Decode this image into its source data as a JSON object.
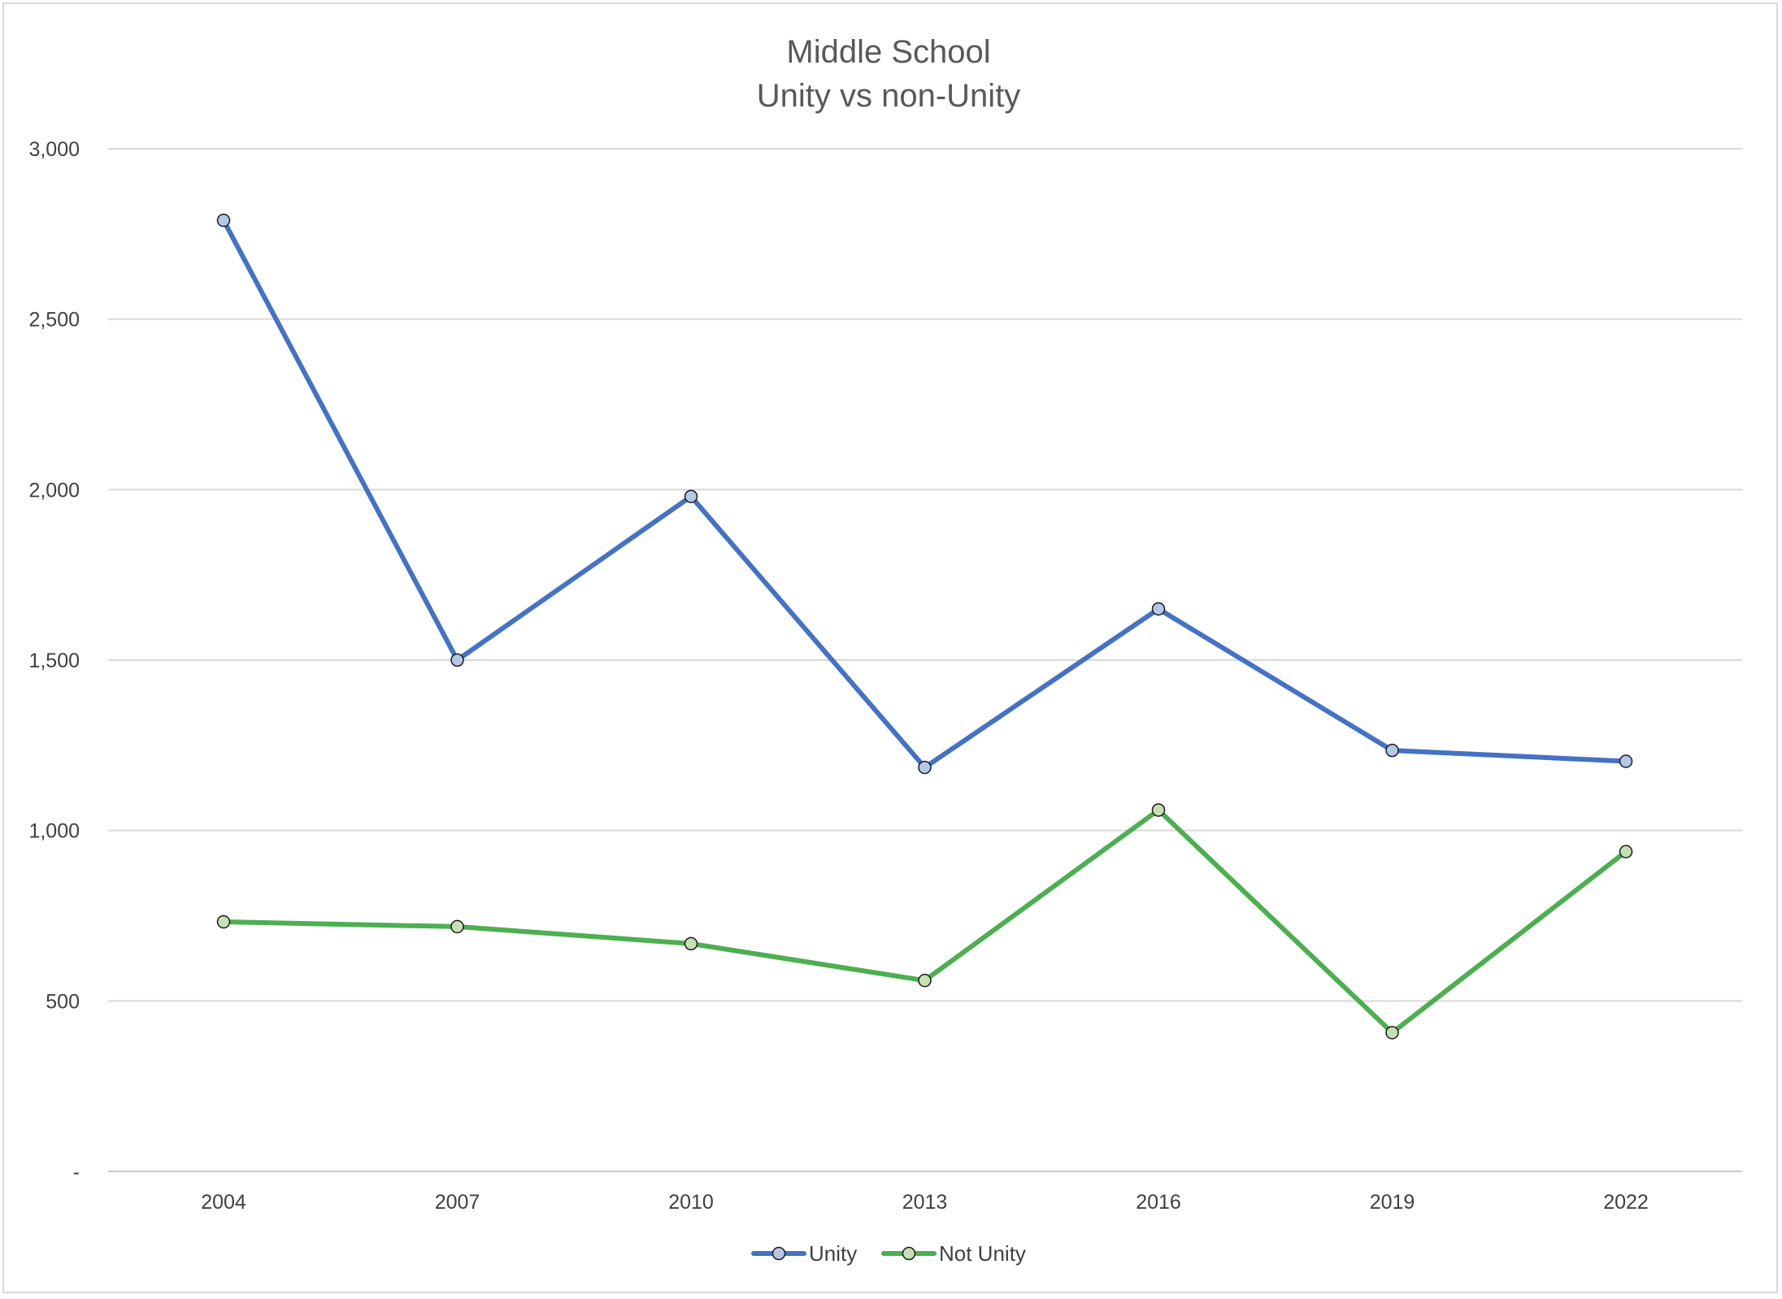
{
  "chart_data": {
    "type": "line",
    "title": [
      "Middle School",
      "Unity vs non-Unity"
    ],
    "xlabel": "",
    "ylabel": "",
    "categories": [
      "2004",
      "2007",
      "2010",
      "2013",
      "2016",
      "2019",
      "2022"
    ],
    "ylim": [
      0,
      3000
    ],
    "yticks": [
      0,
      500,
      1000,
      1500,
      2000,
      2500,
      3000
    ],
    "ytick_labels": [
      "-",
      "500",
      "1,000",
      "1,500",
      "2,000",
      "2,500",
      "3,000"
    ],
    "grid": true,
    "legend_position": "bottom",
    "series": [
      {
        "name": "Unity",
        "values": [
          2790,
          1500,
          1980,
          1185,
          1650,
          1235,
          1203
        ],
        "line_color": "#4472c4",
        "marker_color": "#b4c7e7"
      },
      {
        "name": "Not Unity",
        "values": [
          732,
          718,
          668,
          560,
          1060,
          407,
          938
        ],
        "line_color": "#4caf50",
        "marker_color": "#c5e0b4"
      }
    ]
  }
}
